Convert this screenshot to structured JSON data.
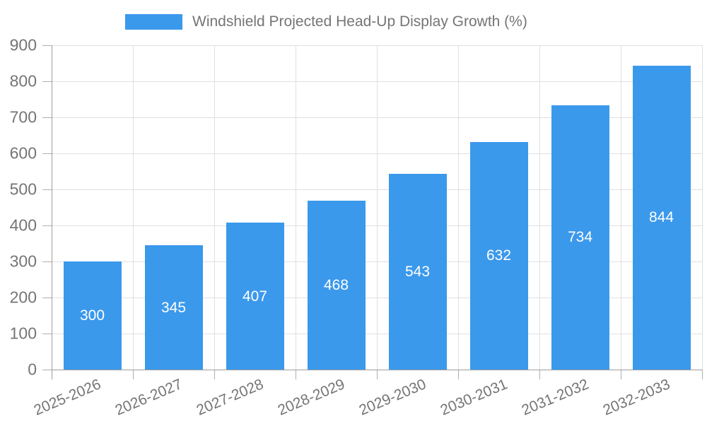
{
  "chart_data": {
    "type": "bar",
    "title": "Windshield Projected Head-Up Display Growth (%)",
    "categories": [
      "2025-2026",
      "2026-2027",
      "2027-2028",
      "2028-2029",
      "2029-2030",
      "2030-2031",
      "2031-2032",
      "2032-2033"
    ],
    "series": [
      {
        "name": "Windshield Projected Head-Up Display Growth (%)",
        "values": [
          300,
          345,
          407,
          468,
          543,
          632,
          734,
          844
        ]
      }
    ],
    "bar_labels": [
      "300",
      "345",
      "407",
      "468",
      "543",
      "632",
      "734",
      "844"
    ],
    "xlabel": "",
    "ylabel": "",
    "ylim": [
      0,
      900
    ],
    "yticks": [
      0,
      100,
      200,
      300,
      400,
      500,
      600,
      700,
      800,
      900
    ],
    "grid": true,
    "legend_position": "top-center",
    "x_label_rotation_deg": -23
  },
  "legend": {
    "label": "Windshield Projected Head-Up Display Growth (%)"
  },
  "colors": {
    "bar": "#3b99ec",
    "bar_label": "#ffffff",
    "grid": "#e0e0e0",
    "axis": "#9e9e9e",
    "tick": "#b0b0b0",
    "text": "#757575",
    "background": "#ffffff"
  }
}
